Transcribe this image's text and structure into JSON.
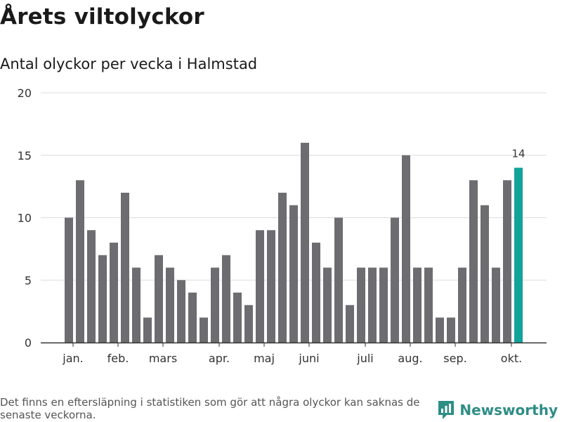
{
  "title": "Årets viltolyckor",
  "subtitle": "Antal olyckor per vecka i Halmstad",
  "footnote": "Det finns en eftersläpning i statistiken som gör att några olyckor kan saknas de senaste veckorna.",
  "brand": {
    "name": "Newsworthy",
    "color": "#2e8e86"
  },
  "chart_data": {
    "type": "bar",
    "values": [
      10,
      13,
      9,
      7,
      8,
      12,
      6,
      2,
      7,
      6,
      5,
      4,
      2,
      6,
      7,
      4,
      3,
      9,
      9,
      12,
      11,
      16,
      8,
      6,
      10,
      3,
      6,
      6,
      6,
      10,
      15,
      6,
      6,
      2,
      2,
      6,
      13,
      11,
      6,
      13,
      14
    ],
    "bar_color": "#6d6c70",
    "highlight_color": "#11a39a",
    "highlight_index": 40,
    "highlight_label": "14",
    "ylim": [
      0,
      20
    ],
    "yticks": [
      0,
      5,
      10,
      15,
      20
    ],
    "month_labels": [
      {
        "label": "jan.",
        "index": 0.5
      },
      {
        "label": "feb.",
        "index": 4.5
      },
      {
        "label": "mars",
        "index": 8.5
      },
      {
        "label": "apr.",
        "index": 13.5
      },
      {
        "label": "maj",
        "index": 17.5
      },
      {
        "label": "juni",
        "index": 21.5
      },
      {
        "label": "juli",
        "index": 26.5
      },
      {
        "label": "aug.",
        "index": 30.5
      },
      {
        "label": "sep.",
        "index": 34.5
      },
      {
        "label": "okt.",
        "index": 39.5
      }
    ],
    "grid": true
  }
}
